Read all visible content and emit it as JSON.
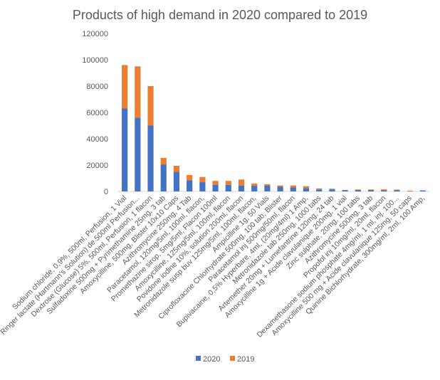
{
  "chart_data": {
    "type": "bar",
    "stacked": true,
    "title": "Products of high demand in 2020 compared to 2019",
    "xlabel": "",
    "ylabel": "",
    "ylim": [
      0,
      120000
    ],
    "yticks": [
      0,
      20000,
      40000,
      60000,
      80000,
      100000,
      120000
    ],
    "grid": false,
    "legend_position": "bottom",
    "categories": [
      "Sodium chloride, 0,9%, 500ml, Perfusion, 1 Vial",
      "Ringer lactate (Hartmann's Solution) de 500ml Perfusion...",
      "Dextrose (Glucose) 5%, 500ml, Perfusion, 1 flacon",
      "Sulfadoxine 500mg + Pyrimethamine 25mg, 3 tab",
      "Amoxycilline, 500mg, Blister 10x10 Caps",
      "Azithromycine 250mg, 4 Tab",
      "Paracetamol, 120mg/5ml, 100ml, flacon,",
      "Promethazine sirop, 5mg/5ml, Flacon 100ml",
      "Amoxycilline, 125mg/5ml, 100ml, flacon",
      "Povidone iodine 10%, solution 200ml, flacon",
      "Metronidazole susp buv 125mg/5ml, 100ml, flacon,",
      "Ampicilline 1g, 50 Vials",
      "Ciprofloxacine Chlorhydrate 500mg, 100 tab, Blister",
      "Paracetamol inj 500mg/50ml, flacon",
      "Bupivacaine, 0,5% Hyperbare, 4ml, (20mg/4ml) 1 Amp,",
      "Metronidazole tab 250mg, 1000 tabs",
      "Artemether 20mg + Lumefantrine 120mg, 24 tab",
      "Amoxycilline 1g + Acide clavulanique 200mg, 1 vial",
      "Zinc sulphate, 20mg, 100 tabs",
      "Azithromycine 500mg, 3 tab",
      "Propofol inj 10mg/ml, 20ml, flacon",
      "Dexamethasone sodium phosphate 4mg/ml, 1 ml, inj. 100...",
      "Amoxycilline 500 mg + Acide clavulanique 125mg, 50 caps",
      "Quinine Bichlorhydrate, 300mg/ml, 2ml, 100 Amp,"
    ],
    "series": [
      {
        "name": "2020",
        "color": "#4472C4",
        "values": [
          63000,
          56000,
          50000,
          20500,
          15000,
          8500,
          7000,
          5000,
          5000,
          4500,
          4500,
          4500,
          3500,
          3000,
          2500,
          1500,
          1500,
          1000,
          1200,
          1200,
          1000,
          800,
          200,
          700
        ]
      },
      {
        "name": "2019",
        "color": "#ED7D31",
        "values": [
          33000,
          39000,
          30000,
          5000,
          4500,
          4000,
          4000,
          3000,
          3000,
          4500,
          1500,
          1000,
          1000,
          1500,
          1500,
          800,
          600,
          200,
          300,
          300,
          600,
          600,
          300,
          200
        ]
      }
    ]
  }
}
